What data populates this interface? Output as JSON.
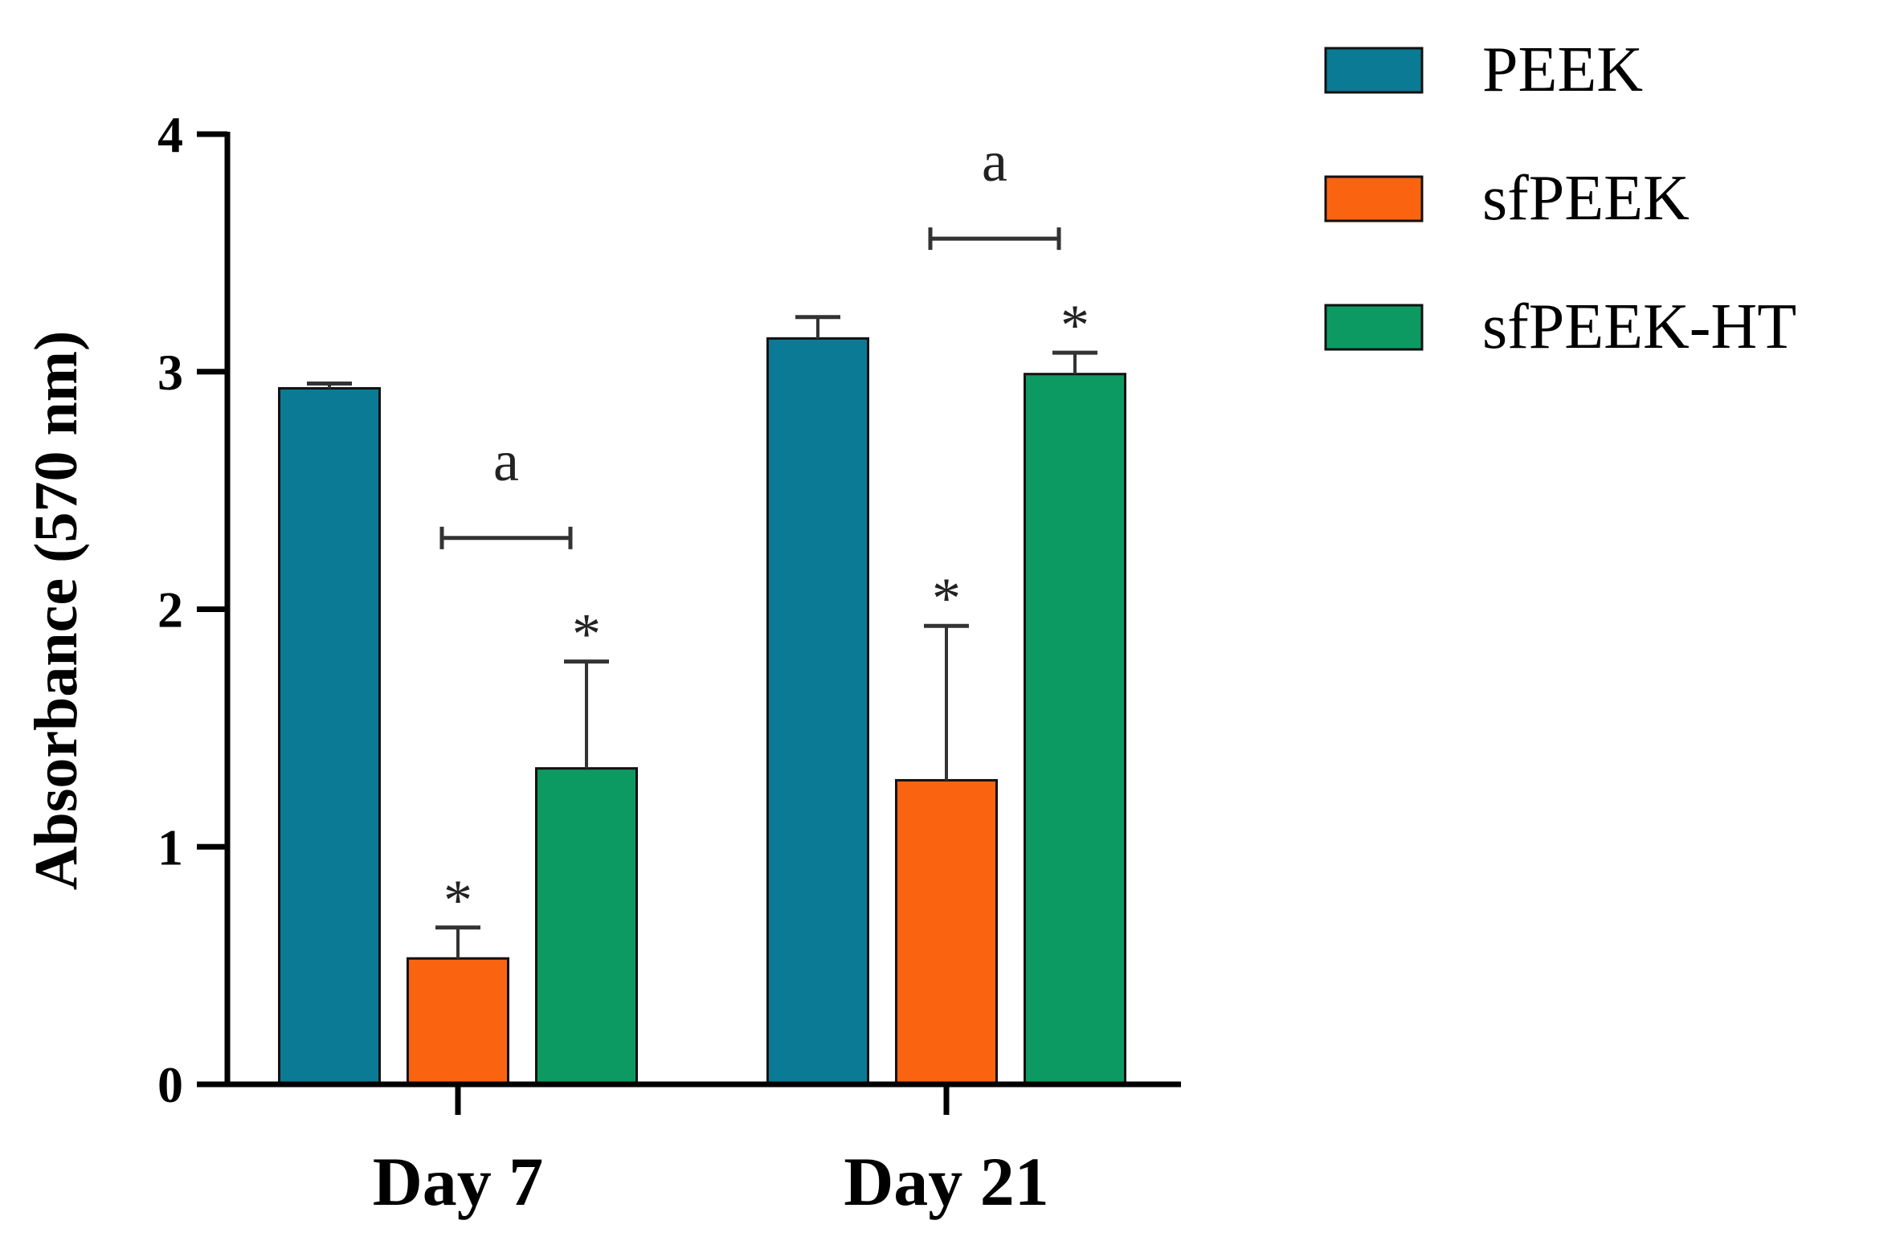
{
  "colors": {
    "PEEK": "#0b7a95",
    "sfPEEK": "#fa6411",
    "sfPEEK-HT": "#0d9a62",
    "axis": "#000000",
    "error": "#333333"
  },
  "chart_data": {
    "type": "bar",
    "title": "",
    "xlabel": "",
    "ylabel": "Absorbance (570 nm)",
    "ylim": [
      0,
      4
    ],
    "yticks": [
      0,
      1,
      2,
      3,
      4
    ],
    "categories": [
      "Day 7",
      "Day 21"
    ],
    "series": [
      {
        "name": "PEEK",
        "values": [
          2.93,
          3.14
        ],
        "errors": [
          0.02,
          0.09
        ],
        "significance": [
          "",
          ""
        ]
      },
      {
        "name": "sfPEEK",
        "values": [
          0.53,
          1.28
        ],
        "errors": [
          0.13,
          0.65
        ],
        "significance": [
          "*",
          "*"
        ]
      },
      {
        "name": "sfPEEK-HT",
        "values": [
          1.33,
          2.99
        ],
        "errors": [
          0.45,
          0.09
        ],
        "significance": [
          "*",
          "*"
        ]
      }
    ],
    "brackets": [
      {
        "category": "Day 7",
        "from_series": "sfPEEK",
        "to_series": "sfPEEK-HT",
        "y": 2.3,
        "label": "a"
      },
      {
        "category": "Day 21",
        "from_series": "sfPEEK",
        "to_series": "sfPEEK-HT",
        "y": 3.56,
        "label": "a"
      }
    ],
    "legend": {
      "position": "top-right"
    }
  }
}
